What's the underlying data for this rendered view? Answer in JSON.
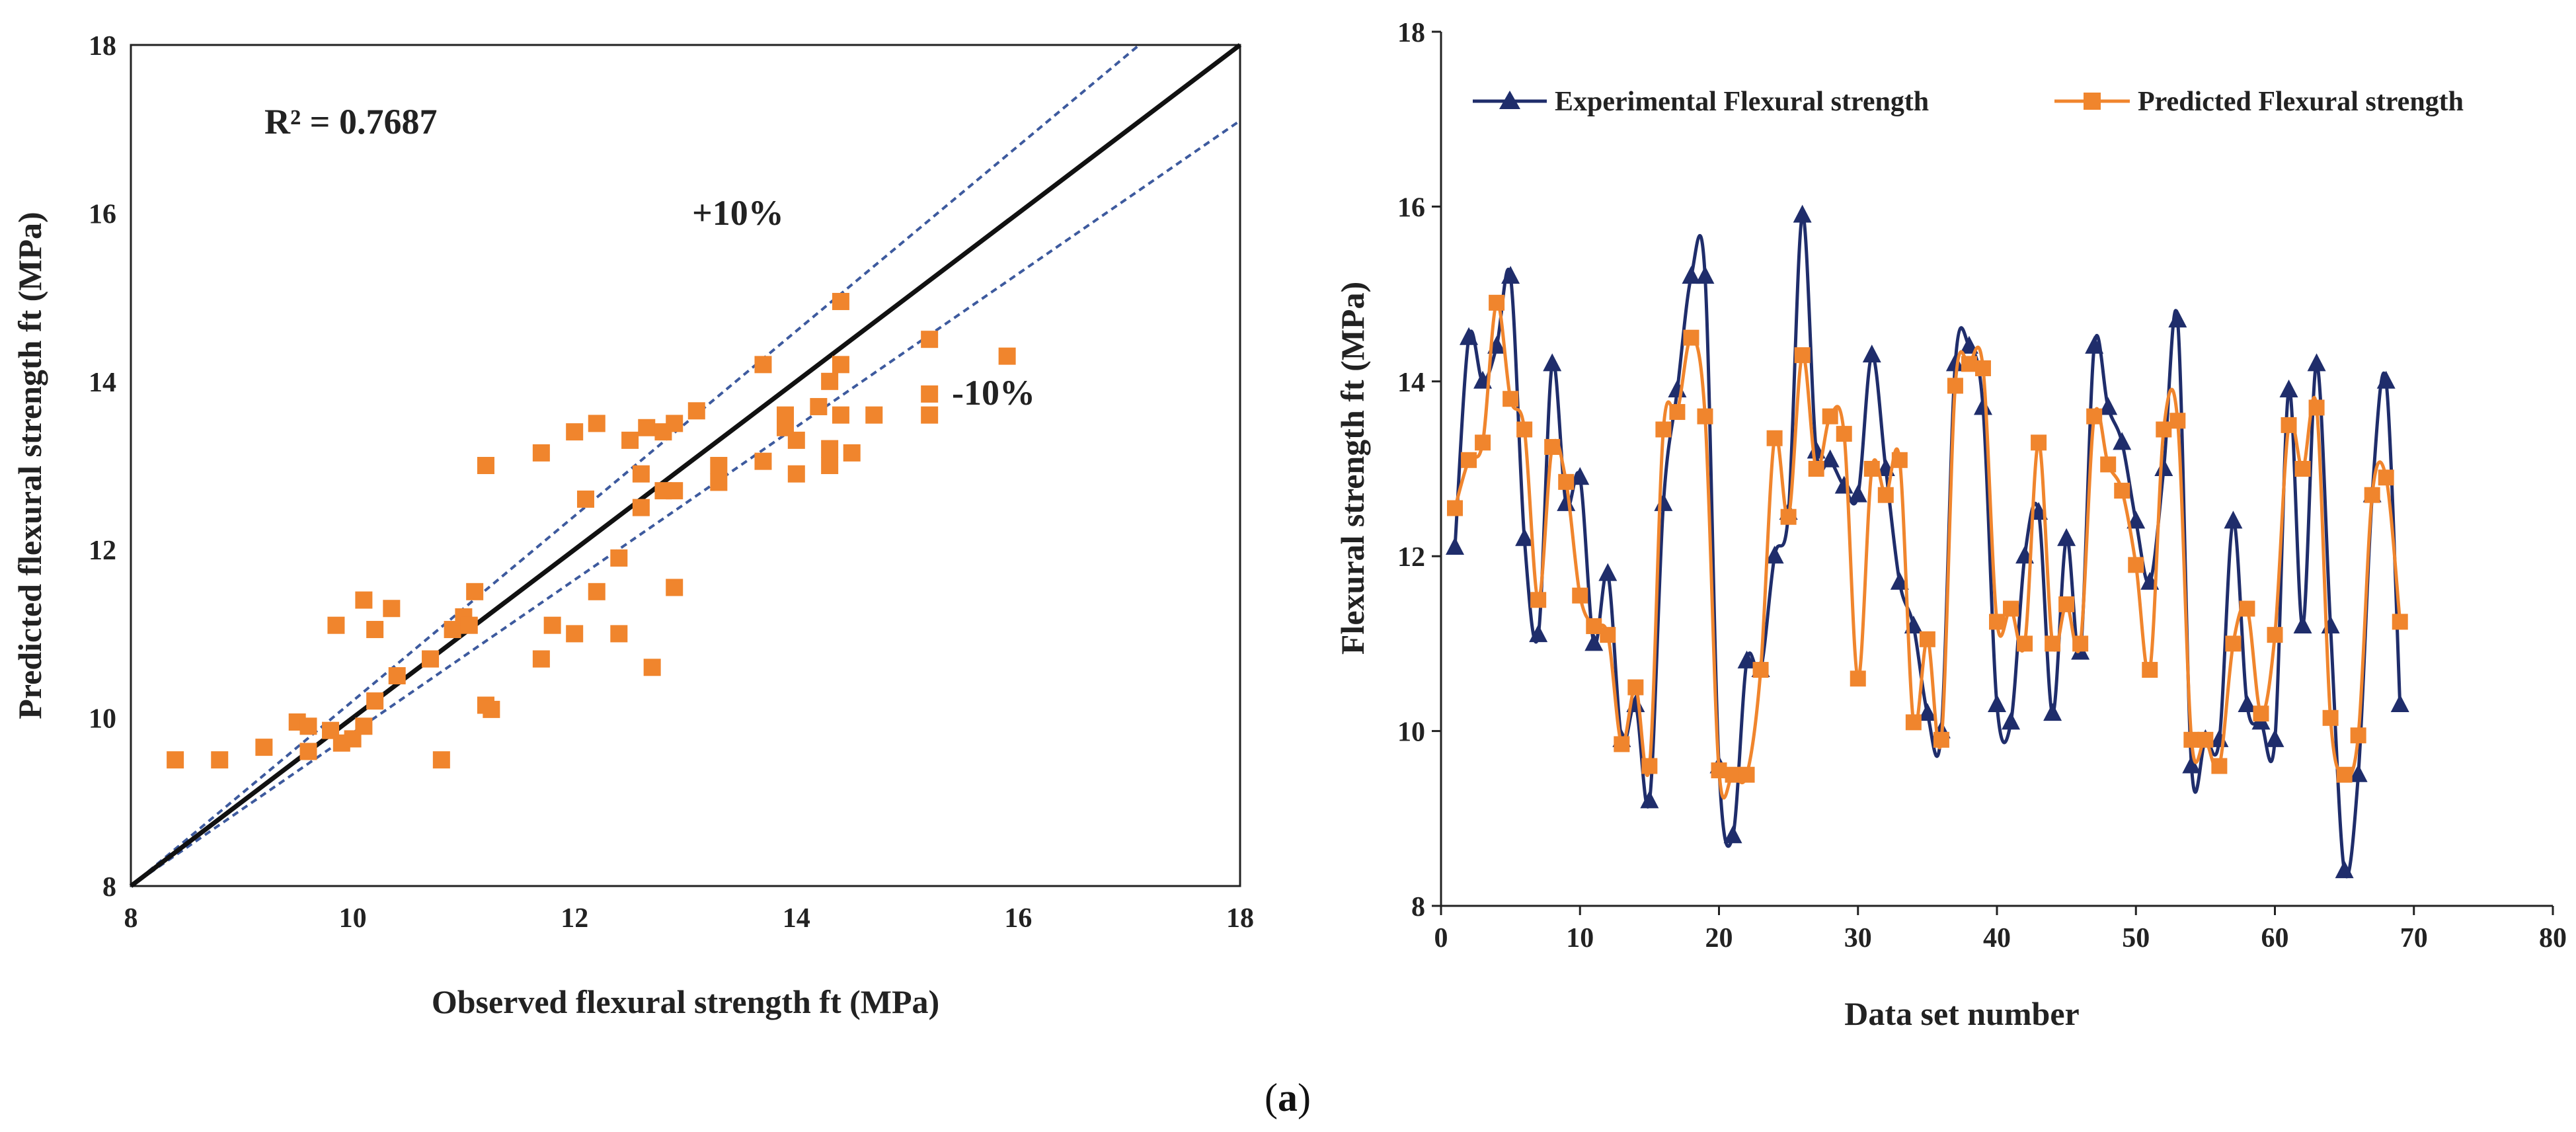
{
  "figure": {
    "caption_prefix": "(",
    "caption_letter": "a",
    "caption_suffix": ")"
  },
  "colors": {
    "experimental": "#1f2d6b",
    "predicted": "#f0852d",
    "fit": "#111111",
    "band": "#3d5a9e",
    "axis": "#222222"
  },
  "chart_data": [
    {
      "id": "scatter",
      "type": "scatter",
      "title": "",
      "xlabel": "Observed flexural strength ft (MPa)",
      "ylabel": "Predicted flexural strength ft (MPa)",
      "xlim": [
        8,
        18
      ],
      "ylim": [
        8,
        18
      ],
      "xticks": [
        8,
        10,
        12,
        14,
        16,
        18
      ],
      "yticks": [
        8,
        10,
        12,
        14,
        16,
        18
      ],
      "grid": false,
      "r2_label": "R² = 0.7687",
      "plus_label": "+10%",
      "minus_label": "-10%",
      "fit_line": [
        [
          8,
          8
        ],
        [
          18,
          18
        ]
      ],
      "band_slopes": [
        1.1,
        0.91
      ],
      "points": [
        [
          8.4,
          9.5
        ],
        [
          8.8,
          9.5
        ],
        [
          9.2,
          9.65
        ],
        [
          9.5,
          9.95
        ],
        [
          9.6,
          9.6
        ],
        [
          9.6,
          9.9
        ],
        [
          9.8,
          9.85
        ],
        [
          9.85,
          11.1
        ],
        [
          9.9,
          9.7
        ],
        [
          10.0,
          9.75
        ],
        [
          10.1,
          9.9
        ],
        [
          10.1,
          11.4
        ],
        [
          10.2,
          10.2
        ],
        [
          10.2,
          11.05
        ],
        [
          10.35,
          11.3
        ],
        [
          10.4,
          10.5
        ],
        [
          10.7,
          10.7
        ],
        [
          10.8,
          9.5
        ],
        [
          10.9,
          11.05
        ],
        [
          11.0,
          11.2
        ],
        [
          11.05,
          11.1
        ],
        [
          11.1,
          11.5
        ],
        [
          11.2,
          13.0
        ],
        [
          11.2,
          10.15
        ],
        [
          11.25,
          10.1
        ],
        [
          11.7,
          10.7
        ],
        [
          11.7,
          13.15
        ],
        [
          11.8,
          11.1
        ],
        [
          12.0,
          13.4
        ],
        [
          12.1,
          12.6
        ],
        [
          12.0,
          11.0
        ],
        [
          12.2,
          13.5
        ],
        [
          12.2,
          11.5
        ],
        [
          12.4,
          11.9
        ],
        [
          12.4,
          11.0
        ],
        [
          12.5,
          13.3
        ],
        [
          12.6,
          12.9
        ],
        [
          12.6,
          12.5
        ],
        [
          12.65,
          13.45
        ],
        [
          12.7,
          10.6
        ],
        [
          12.8,
          12.7
        ],
        [
          12.8,
          13.4
        ],
        [
          12.9,
          13.5
        ],
        [
          12.9,
          12.7
        ],
        [
          12.9,
          11.55
        ],
        [
          13.1,
          13.65
        ],
        [
          13.3,
          12.8
        ],
        [
          13.3,
          13.0
        ],
        [
          13.7,
          14.2
        ],
        [
          13.7,
          13.05
        ],
        [
          13.9,
          13.6
        ],
        [
          13.9,
          13.45
        ],
        [
          14.0,
          13.3
        ],
        [
          14.0,
          12.9
        ],
        [
          14.2,
          13.7
        ],
        [
          14.3,
          13.2
        ],
        [
          14.3,
          13.0
        ],
        [
          14.3,
          14.0
        ],
        [
          14.4,
          14.95
        ],
        [
          14.4,
          14.2
        ],
        [
          14.4,
          13.6
        ],
        [
          14.5,
          13.15
        ],
        [
          14.7,
          13.6
        ],
        [
          15.2,
          14.5
        ],
        [
          15.2,
          13.85
        ],
        [
          15.2,
          13.6
        ],
        [
          15.9,
          14.3
        ]
      ]
    },
    {
      "id": "line",
      "type": "line",
      "title": "",
      "xlabel": "Data set number",
      "ylabel": "Flexural strength ft (MPa)",
      "xlim": [
        0,
        80
      ],
      "ylim": [
        8,
        18
      ],
      "xticks": [
        0,
        10,
        20,
        30,
        40,
        50,
        60,
        70,
        80
      ],
      "yticks": [
        8,
        10,
        12,
        14,
        16,
        18
      ],
      "grid": false,
      "legend_position": "top",
      "x": [
        1,
        2,
        3,
        4,
        5,
        6,
        7,
        8,
        9,
        10,
        11,
        12,
        13,
        14,
        15,
        16,
        17,
        18,
        19,
        20,
        21,
        22,
        23,
        24,
        25,
        26,
        27,
        28,
        29,
        30,
        31,
        32,
        33,
        34,
        35,
        36,
        37,
        38,
        39,
        40,
        41,
        42,
        43,
        44,
        45,
        46,
        47,
        48,
        49,
        50,
        51,
        52,
        53,
        54,
        55,
        56,
        57,
        58,
        59,
        60,
        61,
        62,
        63,
        64,
        65,
        66,
        67,
        68,
        69
      ],
      "series": [
        {
          "name": "Experimental Flexural strength",
          "marker": "triangle",
          "values": [
            12.1,
            14.5,
            14.0,
            14.4,
            15.2,
            12.2,
            11.1,
            14.2,
            12.6,
            12.9,
            11.0,
            11.8,
            9.9,
            10.3,
            9.2,
            12.6,
            13.9,
            15.2,
            15.2,
            9.6,
            8.8,
            10.8,
            10.7,
            12.0,
            12.5,
            15.9,
            13.2,
            13.1,
            12.8,
            12.7,
            14.3,
            13.0,
            11.7,
            11.2,
            10.2,
            10.0,
            14.2,
            14.4,
            13.7,
            10.3,
            10.1,
            12.0,
            12.5,
            10.2,
            12.2,
            10.9,
            14.4,
            13.7,
            13.3,
            12.4,
            11.7,
            13.0,
            14.7,
            9.6,
            9.9,
            9.9,
            12.4,
            10.3,
            10.1,
            9.9,
            13.9,
            11.2,
            14.2,
            11.2,
            8.4,
            9.5,
            12.7,
            14.0,
            10.3
          ]
        },
        {
          "name": "Predicted Flexural strength",
          "marker": "square",
          "values": [
            12.55,
            13.1,
            13.3,
            14.9,
            13.8,
            13.45,
            11.5,
            13.25,
            12.85,
            11.55,
            11.2,
            11.1,
            9.85,
            10.5,
            9.6,
            13.45,
            13.65,
            14.5,
            13.6,
            9.55,
            9.5,
            9.5,
            10.7,
            13.35,
            12.45,
            14.3,
            13.0,
            13.6,
            13.4,
            10.6,
            13.0,
            12.7,
            13.1,
            10.1,
            11.05,
            9.9,
            13.95,
            14.2,
            14.15,
            11.25,
            11.4,
            11.0,
            13.3,
            11.0,
            11.45,
            11.0,
            13.6,
            13.05,
            12.75,
            11.9,
            10.7,
            13.45,
            13.55,
            9.9,
            9.9,
            9.6,
            11.0,
            11.4,
            10.2,
            11.1,
            13.5,
            13.0,
            13.7,
            10.15,
            9.5,
            9.95,
            12.7,
            12.9,
            11.25
          ]
        }
      ]
    }
  ]
}
